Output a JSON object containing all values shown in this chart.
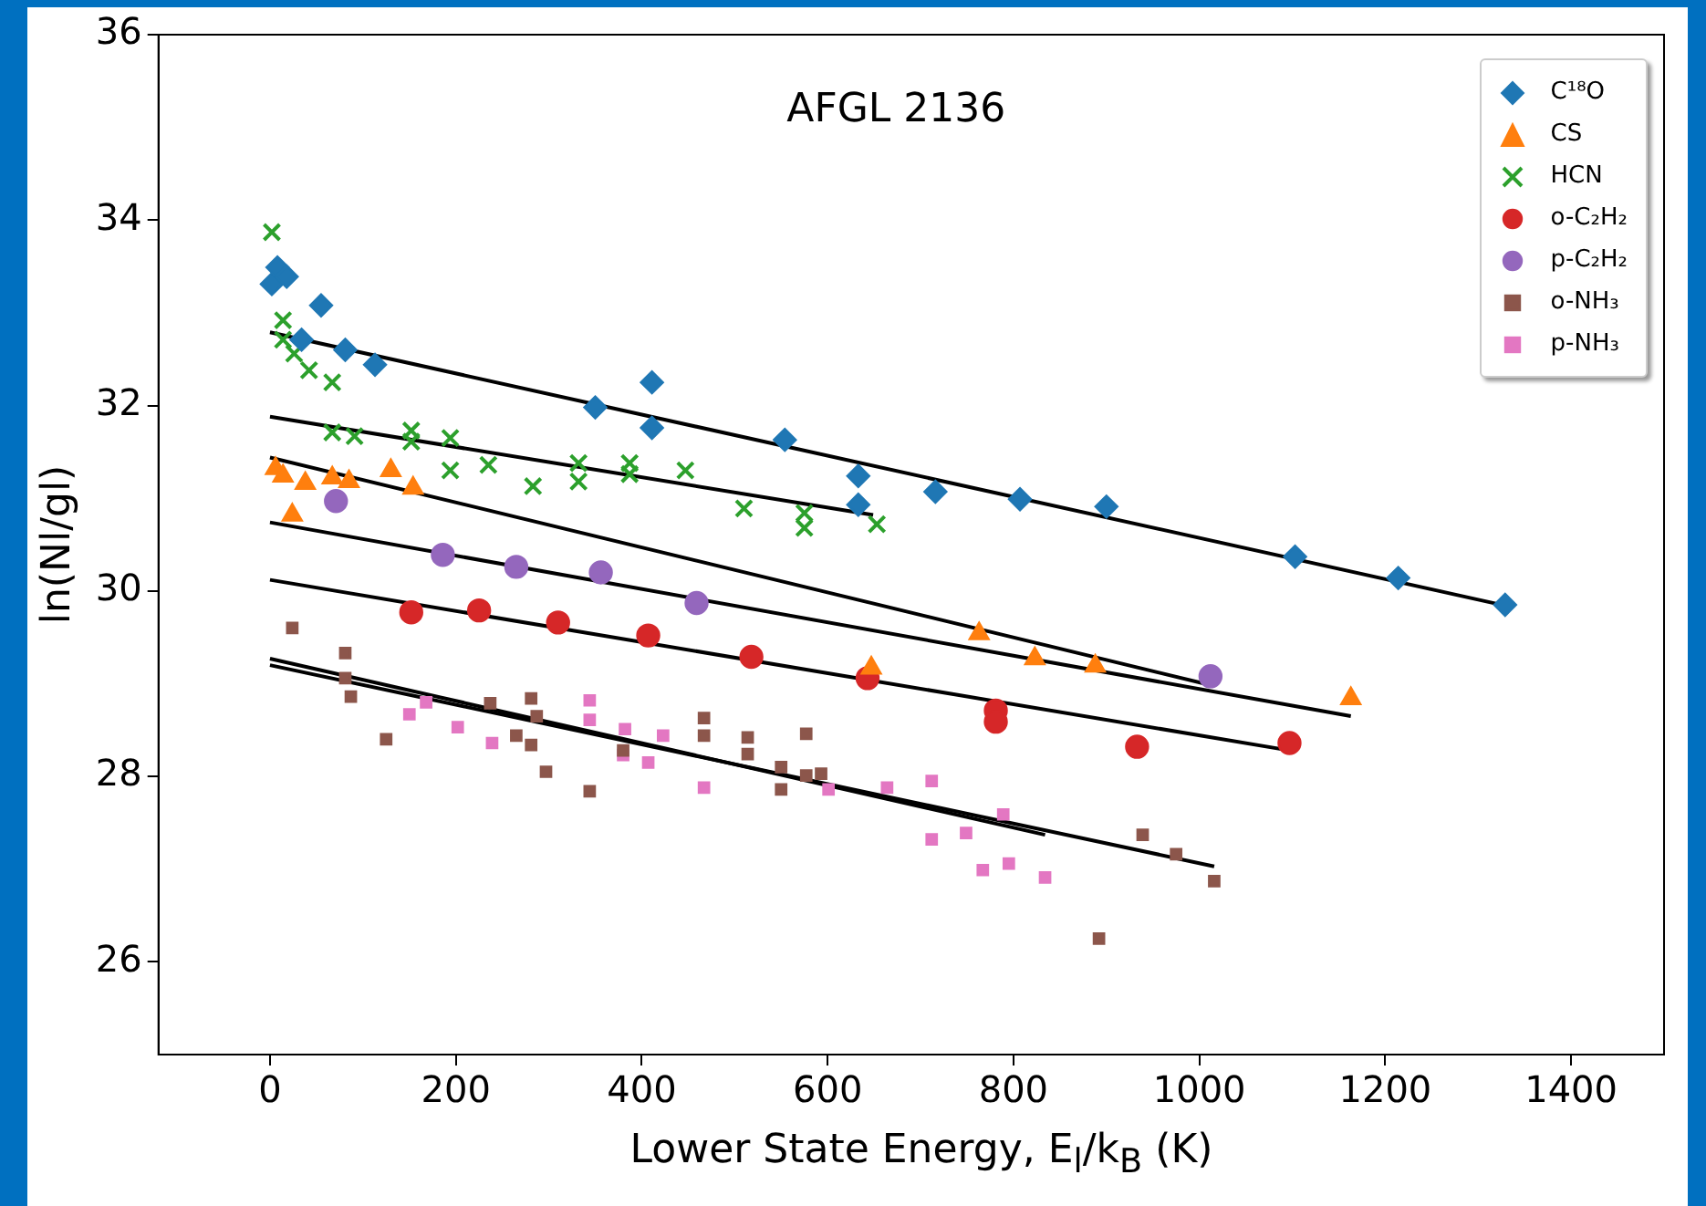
{
  "chart_data": {
    "type": "scatter",
    "title": "AFGL 2136",
    "xlabel": "Lower State Energy, E$_{l}$/k$_{B}$ (K)",
    "ylabel": "ln(Nl/gl)",
    "xlim": [
      -120,
      1500
    ],
    "xticks": [
      0,
      200,
      400,
      600,
      800,
      1000,
      1200,
      1400
    ],
    "ylim": [
      25,
      36
    ],
    "yticks": [
      26,
      28,
      30,
      32,
      34,
      36
    ],
    "legend": "top right",
    "series": [
      {
        "name": "C¹⁸O",
        "color": "#1f77b4",
        "marker": "diamond",
        "x": [
          2,
          8,
          18,
          55,
          34,
          81,
          113,
          350,
          411,
          411,
          554,
          633,
          633,
          716,
          807,
          900,
          1103,
          1214,
          1329
        ],
        "values": [
          33.31,
          33.49,
          33.39,
          33.08,
          32.71,
          32.6,
          32.44,
          31.98,
          32.25,
          31.76,
          31.63,
          31.24,
          30.93,
          31.07,
          30.99,
          30.91,
          30.37,
          30.14,
          29.85
        ]
      },
      {
        "name": "CS",
        "color": "#ff7f0e",
        "marker": "triangle",
        "x": [
          6,
          14,
          38,
          67,
          85,
          130,
          154,
          24,
          647,
          763,
          823,
          888,
          1163
        ],
        "values": [
          31.32,
          31.24,
          31.16,
          31.22,
          31.18,
          31.3,
          31.11,
          30.82,
          29.17,
          29.54,
          29.27,
          29.19,
          28.84
        ]
      },
      {
        "name": "HCN",
        "color": "#2ca02c",
        "marker": "cross",
        "x": [
          2,
          14,
          14,
          26,
          42,
          67,
          67,
          91,
          152,
          152,
          194,
          194,
          235,
          283,
          332,
          332,
          387,
          387,
          447,
          510,
          575,
          575,
          653
        ],
        "values": [
          33.87,
          32.92,
          32.71,
          32.56,
          32.38,
          32.25,
          31.71,
          31.67,
          31.73,
          31.61,
          31.65,
          31.3,
          31.36,
          31.13,
          31.38,
          31.18,
          31.38,
          31.26,
          31.3,
          30.89,
          30.84,
          30.68,
          30.72
        ]
      },
      {
        "name": "o-C₂H₂",
        "color": "#d62728",
        "marker": "circle",
        "x": [
          152,
          225,
          310,
          407,
          518,
          643,
          781,
          781,
          933,
          1097
        ],
        "values": [
          29.77,
          29.79,
          29.66,
          29.52,
          29.29,
          29.06,
          28.71,
          28.59,
          28.32,
          28.36
        ]
      },
      {
        "name": "p-C₂H₂",
        "color": "#9467bd",
        "marker": "circle",
        "x": [
          71,
          186,
          265,
          356,
          459,
          1012
        ],
        "values": [
          30.97,
          30.39,
          30.26,
          30.2,
          29.87,
          29.08
        ]
      },
      {
        "name": "o-NH₃",
        "color": "#8c564b",
        "marker": "square",
        "x": [
          24,
          81,
          81,
          87,
          125,
          237,
          265,
          281,
          287,
          281,
          297,
          344,
          380,
          467,
          467,
          514,
          514,
          550,
          550,
          577,
          577,
          593,
          939,
          975,
          1016,
          892
        ],
        "values": [
          29.6,
          29.33,
          29.06,
          28.86,
          28.4,
          28.79,
          28.44,
          28.84,
          28.65,
          28.34,
          28.05,
          27.84,
          28.28,
          28.63,
          28.44,
          28.42,
          28.24,
          28.1,
          27.86,
          28.46,
          28.01,
          28.03,
          27.37,
          27.16,
          26.87,
          26.25
        ]
      },
      {
        "name": "p-NH₃",
        "color": "#e377c2",
        "marker": "square",
        "x": [
          150,
          168,
          202,
          239,
          344,
          344,
          382,
          380,
          407,
          423,
          467,
          601,
          664,
          712,
          712,
          749,
          789,
          767,
          795,
          834
        ],
        "values": [
          28.67,
          28.8,
          28.53,
          28.36,
          28.82,
          28.61,
          28.51,
          28.23,
          28.15,
          28.44,
          27.88,
          27.86,
          27.88,
          27.95,
          27.32,
          27.39,
          27.59,
          26.99,
          27.06,
          26.91
        ]
      },
      {
        "type": "line",
        "color": "#000000",
        "marker": "none",
        "x": [
          0,
          1330
        ],
        "values": [
          32.79,
          29.84
        ]
      },
      {
        "type": "line",
        "color": "#000000",
        "marker": "none",
        "x": [
          0,
          649
        ],
        "values": [
          31.88,
          30.82
        ]
      },
      {
        "type": "line",
        "color": "#000000",
        "marker": "none",
        "x": [
          0,
          1014
        ],
        "values": [
          31.44,
          28.98
        ]
      },
      {
        "type": "line",
        "color": "#000000",
        "marker": "none",
        "x": [
          0,
          1163
        ],
        "values": [
          30.74,
          28.65
        ]
      },
      {
        "type": "line",
        "color": "#000000",
        "marker": "none",
        "x": [
          0,
          1097
        ],
        "values": [
          30.12,
          28.28
        ]
      },
      {
        "type": "line",
        "color": "#000000",
        "marker": "none",
        "x": [
          0,
          834
        ],
        "values": [
          29.27,
          27.37
        ]
      },
      {
        "type": "line",
        "color": "#000000",
        "marker": "none",
        "x": [
          0,
          1016
        ],
        "values": [
          29.2,
          27.03
        ]
      }
    ]
  }
}
